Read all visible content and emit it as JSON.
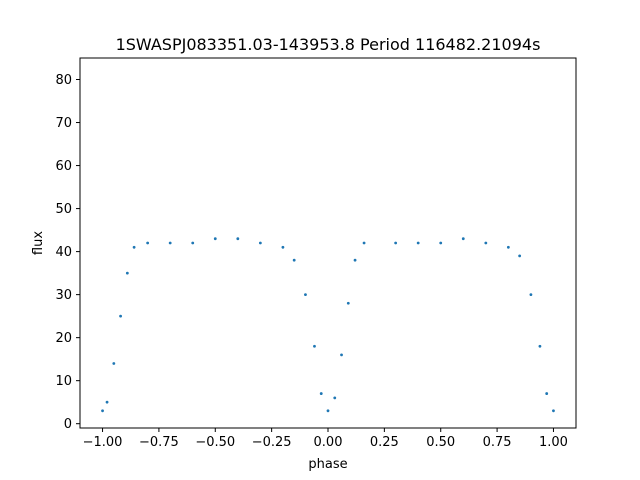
{
  "chart_data": {
    "type": "scatter",
    "title": "1SWASPJ083351.03-143953.8 Period 116482.21094s",
    "xlabel": "phase",
    "ylabel": "flux",
    "xlim": [
      -1.1,
      1.1
    ],
    "ylim": [
      -1,
      85
    ],
    "xticks": [
      -1.0,
      -0.75,
      -0.5,
      -0.25,
      0.0,
      0.25,
      0.5,
      0.75,
      1.0
    ],
    "xtick_labels": [
      "−1.00",
      "−0.75",
      "−0.50",
      "−0.25",
      "0.00",
      "0.25",
      "0.50",
      "0.75",
      "1.00"
    ],
    "yticks": [
      0,
      10,
      20,
      30,
      40,
      50,
      60,
      70,
      80
    ],
    "ytick_labels": [
      "0",
      "10",
      "20",
      "30",
      "40",
      "50",
      "60",
      "70",
      "80"
    ],
    "grid": false,
    "legend": false,
    "point_color": "#1f77b4",
    "series": [
      {
        "values": [
          {
            "x": -1.0,
            "y": 3
          },
          {
            "x": -0.98,
            "y": 5
          },
          {
            "x": -0.95,
            "y": 14
          },
          {
            "x": -0.92,
            "y": 25
          },
          {
            "x": -0.89,
            "y": 35
          },
          {
            "x": -0.86,
            "y": 41
          },
          {
            "x": -0.8,
            "y": 42
          },
          {
            "x": -0.7,
            "y": 42
          },
          {
            "x": -0.6,
            "y": 42
          },
          {
            "x": -0.5,
            "y": 43
          },
          {
            "x": -0.4,
            "y": 43
          },
          {
            "x": -0.3,
            "y": 42
          },
          {
            "x": -0.2,
            "y": 41
          },
          {
            "x": -0.15,
            "y": 38
          },
          {
            "x": -0.1,
            "y": 30
          },
          {
            "x": -0.06,
            "y": 18
          },
          {
            "x": -0.03,
            "y": 7
          },
          {
            "x": 0.0,
            "y": 3
          },
          {
            "x": 0.03,
            "y": 6
          },
          {
            "x": 0.06,
            "y": 16
          },
          {
            "x": 0.09,
            "y": 28
          },
          {
            "x": 0.12,
            "y": 38
          },
          {
            "x": 0.16,
            "y": 42
          },
          {
            "x": 0.3,
            "y": 42
          },
          {
            "x": 0.4,
            "y": 42
          },
          {
            "x": 0.5,
            "y": 42
          },
          {
            "x": 0.6,
            "y": 43
          },
          {
            "x": 0.7,
            "y": 42
          },
          {
            "x": 0.8,
            "y": 41
          },
          {
            "x": 0.85,
            "y": 39
          },
          {
            "x": 0.9,
            "y": 30
          },
          {
            "x": 0.94,
            "y": 18
          },
          {
            "x": 0.97,
            "y": 7
          },
          {
            "x": 1.0,
            "y": 3
          }
        ]
      }
    ]
  }
}
